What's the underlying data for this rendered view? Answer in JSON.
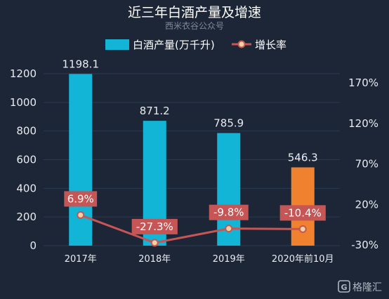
{
  "chart_data": {
    "type": "bar",
    "title": "近三年白酒产量及增速",
    "subtitle": "西米衣谷公众号",
    "categories": [
      "2017年",
      "2018年",
      "2019年",
      "2020年前10月"
    ],
    "series": [
      {
        "name": "白酒产量(万千升)",
        "type": "bar",
        "axis": "left",
        "values": [
          1198.1,
          871.2,
          785.9,
          546.3
        ],
        "labels": [
          "1198.1",
          "871.2",
          "785.9",
          "546.3"
        ],
        "colors": [
          "#13b5d6",
          "#13b5d6",
          "#13b5d6",
          "#f0822f"
        ]
      },
      {
        "name": "增长率",
        "type": "line",
        "axis": "right",
        "values": [
          6.9,
          -27.3,
          -9.8,
          -10.4
        ],
        "labels": [
          "6.9%",
          "-27.3%",
          "-9.8%",
          "-10.4%"
        ],
        "color": "#c65555"
      }
    ],
    "y_left": {
      "ylim": [
        0,
        1200
      ],
      "ticks": [
        "0",
        "200",
        "400",
        "600",
        "800",
        "1000",
        "1200"
      ]
    },
    "y_right": {
      "ylim": [
        -30,
        180
      ],
      "ticks": [
        "-30%",
        "20%",
        "70%",
        "120%",
        "170%"
      ]
    },
    "grid": true,
    "legend_placement": "top-center"
  },
  "brand": {
    "name": "格隆汇",
    "logo_letter": "G"
  },
  "colors": {
    "background": "#1c2636",
    "bar": "#13b5d6",
    "bar_highlight": "#f0822f",
    "line": "#c65555",
    "label_box": "#c65555"
  }
}
